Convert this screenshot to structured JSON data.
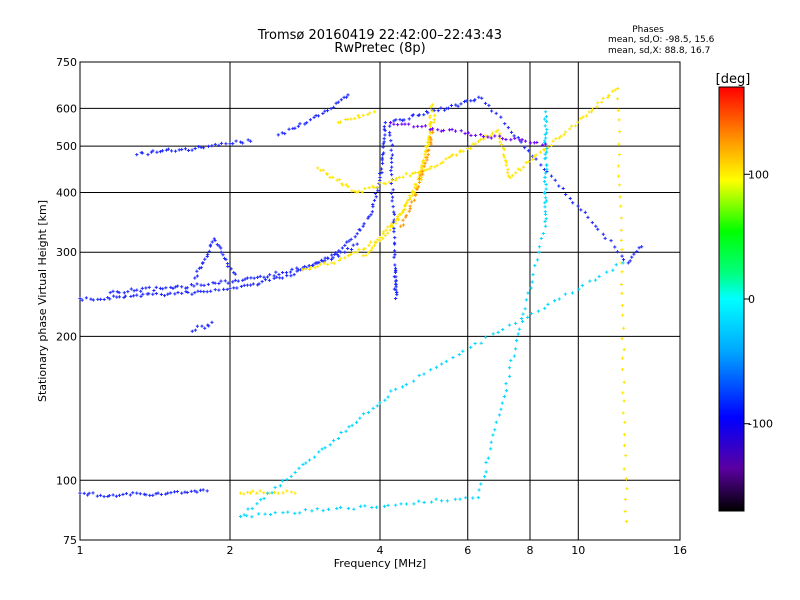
{
  "chart_data": {
    "type": "scatter",
    "title": "Tromsø 20160419 22:42:00–22:43:43",
    "subtitle": "RwPretec (8p)",
    "xlabel": "Frequency [MHz]",
    "ylabel": "Stationary phase Virtual Height [km]",
    "x_scale": "log",
    "y_scale": "log",
    "xlim": [
      1,
      16
    ],
    "ylim": [
      75,
      750
    ],
    "xticks": [
      1,
      2,
      4,
      6,
      8,
      10,
      16
    ],
    "xtick_labels": [
      "1",
      "2",
      "4",
      "6",
      "8",
      "10",
      "16"
    ],
    "yticks": [
      75,
      100,
      200,
      300,
      400,
      500,
      600,
      750
    ],
    "ytick_labels": [
      "75",
      "100",
      "200",
      "300",
      "400",
      "500",
      "600",
      "750"
    ],
    "grid": true,
    "stats": {
      "heading": "Phases",
      "line1": "mean, sd,O:  -98.5,  15.6",
      "line2": "mean, sd,X:   88.8,  16.7"
    },
    "colorbar": {
      "label": "[deg]",
      "range": [
        -170,
        170
      ],
      "ticks": [
        100,
        0,
        -100
      ],
      "tick_labels": [
        "100",
        "0",
        "-100"
      ]
    },
    "series": [
      {
        "color": "#1e28ff",
        "phase": -100,
        "marker": "plus",
        "segments": [
          {
            "x": [
              1.0,
              1.1,
              1.2,
              1.3,
              1.4,
              1.5,
              1.6,
              1.7,
              1.8,
              1.9,
              2.0,
              2.2,
              2.4,
              2.6,
              2.8,
              3.0,
              3.2,
              3.4,
              3.6,
              3.7,
              3.8,
              3.9,
              4.0,
              4.05,
              4.1
            ],
            "y": [
              240,
              239,
              242,
              244,
              245,
              245,
              246,
              247,
              248,
              250,
              252,
              256,
              262,
              268,
              276,
              285,
              296,
              310,
              328,
              340,
              356,
              385,
              430,
              480,
              560
            ]
          },
          {
            "x": [
              1.15,
              1.3,
              1.45,
              1.6,
              1.75,
              1.9,
              2.05,
              2.3,
              2.55,
              2.8,
              3.1,
              3.4,
              3.6
            ],
            "y": [
              247,
              250,
              252,
              254,
              256,
              258,
              262,
              267,
              272,
              278,
              288,
              300,
              312
            ]
          },
          {
            "x": [
              1.7,
              1.78,
              1.86,
              1.92,
              1.98,
              2.05
            ],
            "y": [
              265,
              290,
              320,
              300,
              280,
              270
            ]
          },
          {
            "x": [
              1.68,
              1.72,
              1.78,
              1.84
            ],
            "y": [
              205,
              210,
              208,
              214
            ]
          },
          {
            "x": [
              1.3,
              1.45,
              1.6,
              1.75,
              1.9,
              2.0,
              2.1,
              2.2
            ],
            "y": [
              480,
              487,
              492,
              497,
              502,
              506,
              510,
              512
            ]
          },
          {
            "x": [
              2.5,
              2.7,
              2.9,
              3.1,
              3.3,
              3.45
            ],
            "y": [
              528,
              545,
              568,
              592,
              618,
              640
            ]
          },
          {
            "x": [
              1.0,
              1.1,
              1.2,
              1.3,
              1.4,
              1.5,
              1.6,
              1.7,
              1.8
            ],
            "y": [
              94,
              93,
              93,
              94,
              93,
              94,
              94,
              95,
              95
            ]
          },
          {
            "x": [
              4.3,
              4.3,
              4.2,
              6.4,
              12.6,
              13.4
            ],
            "y": [
              275,
              240,
              560,
              630,
              285,
              308
            ]
          }
        ]
      },
      {
        "color": "#ffe600",
        "phase": 100,
        "marker": "plus",
        "segments": [
          {
            "x": [
              2.8,
              3.0,
              3.2,
              3.4,
              3.6,
              3.8,
              4.0,
              4.2,
              4.4,
              4.6,
              4.8,
              4.9,
              5.0,
              5.05,
              5.1
            ],
            "y": [
              276,
              280,
              285,
              292,
              300,
              310,
              322,
              340,
              360,
              390,
              420,
              460,
              510,
              560,
              610
            ]
          },
          {
            "x": [
              3.7,
              3.9,
              4.1,
              4.3,
              4.5,
              4.7,
              4.85,
              4.95,
              5.05,
              5.15
            ],
            "y": [
              295,
              310,
              325,
              345,
              375,
              410,
              450,
              490,
              540,
              580
            ]
          },
          {
            "x": [
              3.3,
              3.5,
              3.7,
              3.9
            ],
            "y": [
              560,
              570,
              580,
              590
            ]
          },
          {
            "x": [
              2.1,
              2.2,
              2.3,
              2.4,
              2.5,
              2.6,
              2.7
            ],
            "y": [
              94,
              94,
              95,
              94,
              94,
              95,
              94
            ]
          },
          {
            "x": [
              3.0,
              3.6,
              5.3,
              6.9,
              7.3,
              12.0,
              12.5
            ],
            "y": [
              450,
              400,
              460,
              540,
              430,
              660,
              82
            ]
          }
        ]
      },
      {
        "color": "#ff9800",
        "phase": 150,
        "marker": "plus",
        "segments": [
          {
            "x": [
              4.4,
              4.6,
              4.8,
              5.0,
              5.1
            ],
            "y": [
              340,
              370,
              420,
              480,
              540
            ]
          }
        ]
      },
      {
        "color": "#00d8ff",
        "phase": 10,
        "marker": "plus",
        "segments": [
          {
            "x": [
              8.6,
              8.6,
              8.6,
              8.6,
              8.6,
              6.3,
              2.1,
              4.3,
              12.3
            ],
            "y": [
              590,
              520,
              390,
              360,
              340,
              92,
              84,
              155,
              285
            ]
          }
        ]
      },
      {
        "color": "#6e00ff",
        "phase": -140,
        "marker": "plus",
        "segments": [
          {
            "x": [
              8.6,
              4.2
            ],
            "y": [
              505,
              560
            ]
          }
        ]
      }
    ]
  }
}
